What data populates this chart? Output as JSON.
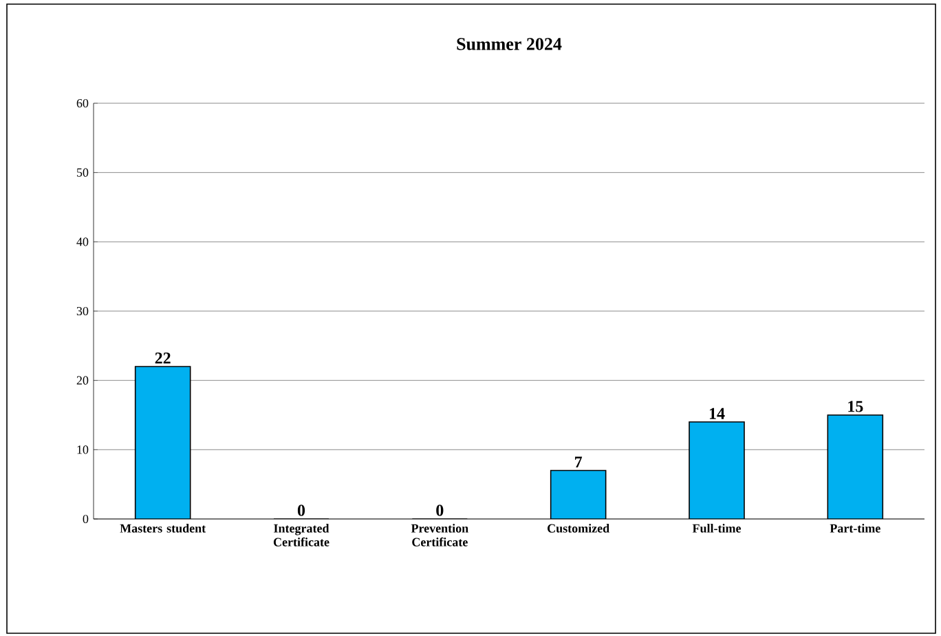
{
  "chart_data": {
    "type": "bar",
    "title": "Summer 2024",
    "categories": [
      "Masters student",
      "Integrated Certificate",
      "Prevention Certificate",
      "Customized",
      "Full-time",
      "Part-time"
    ],
    "values": [
      22,
      0,
      0,
      7,
      14,
      15
    ],
    "color": "#00b0f0",
    "ylim": [
      0,
      60
    ],
    "yticks": [
      0,
      10,
      20,
      30,
      40,
      50,
      60
    ],
    "grid": "y",
    "data_labels": true
  }
}
